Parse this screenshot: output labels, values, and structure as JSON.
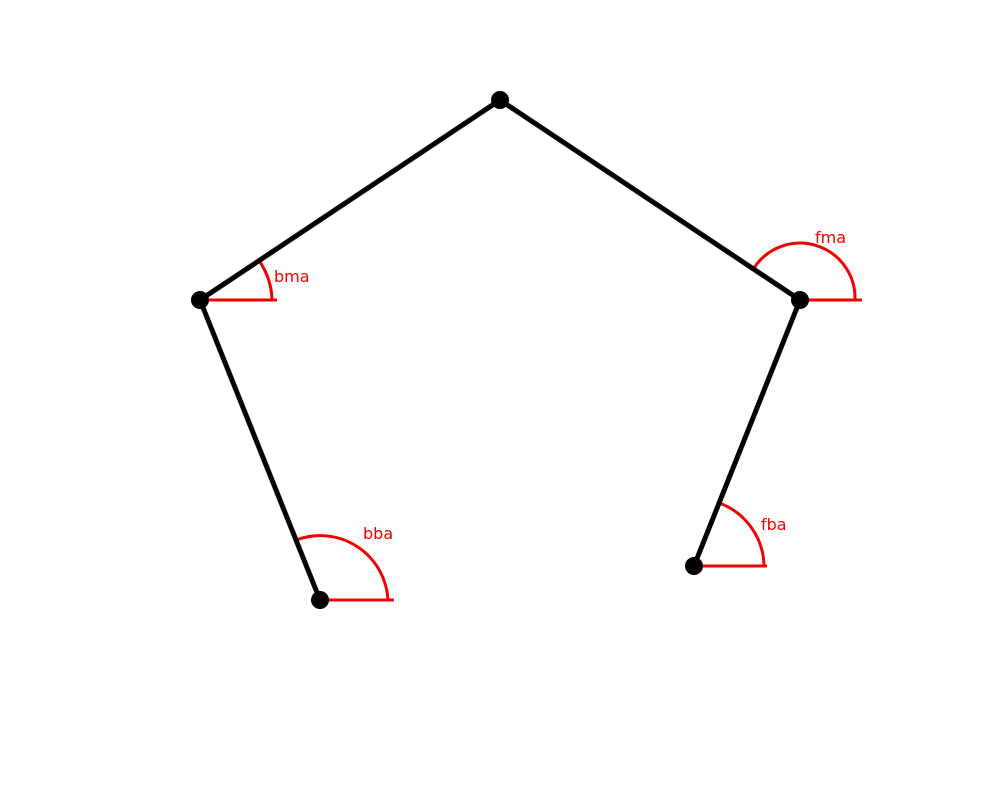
{
  "diagram": {
    "colors": {
      "background": "#ffffff",
      "linkage": "#000000",
      "angle_marks": "#ee0000"
    },
    "angles": {
      "bma": "bma",
      "fma": "fma",
      "bba": "bba",
      "fba": "fba"
    }
  }
}
